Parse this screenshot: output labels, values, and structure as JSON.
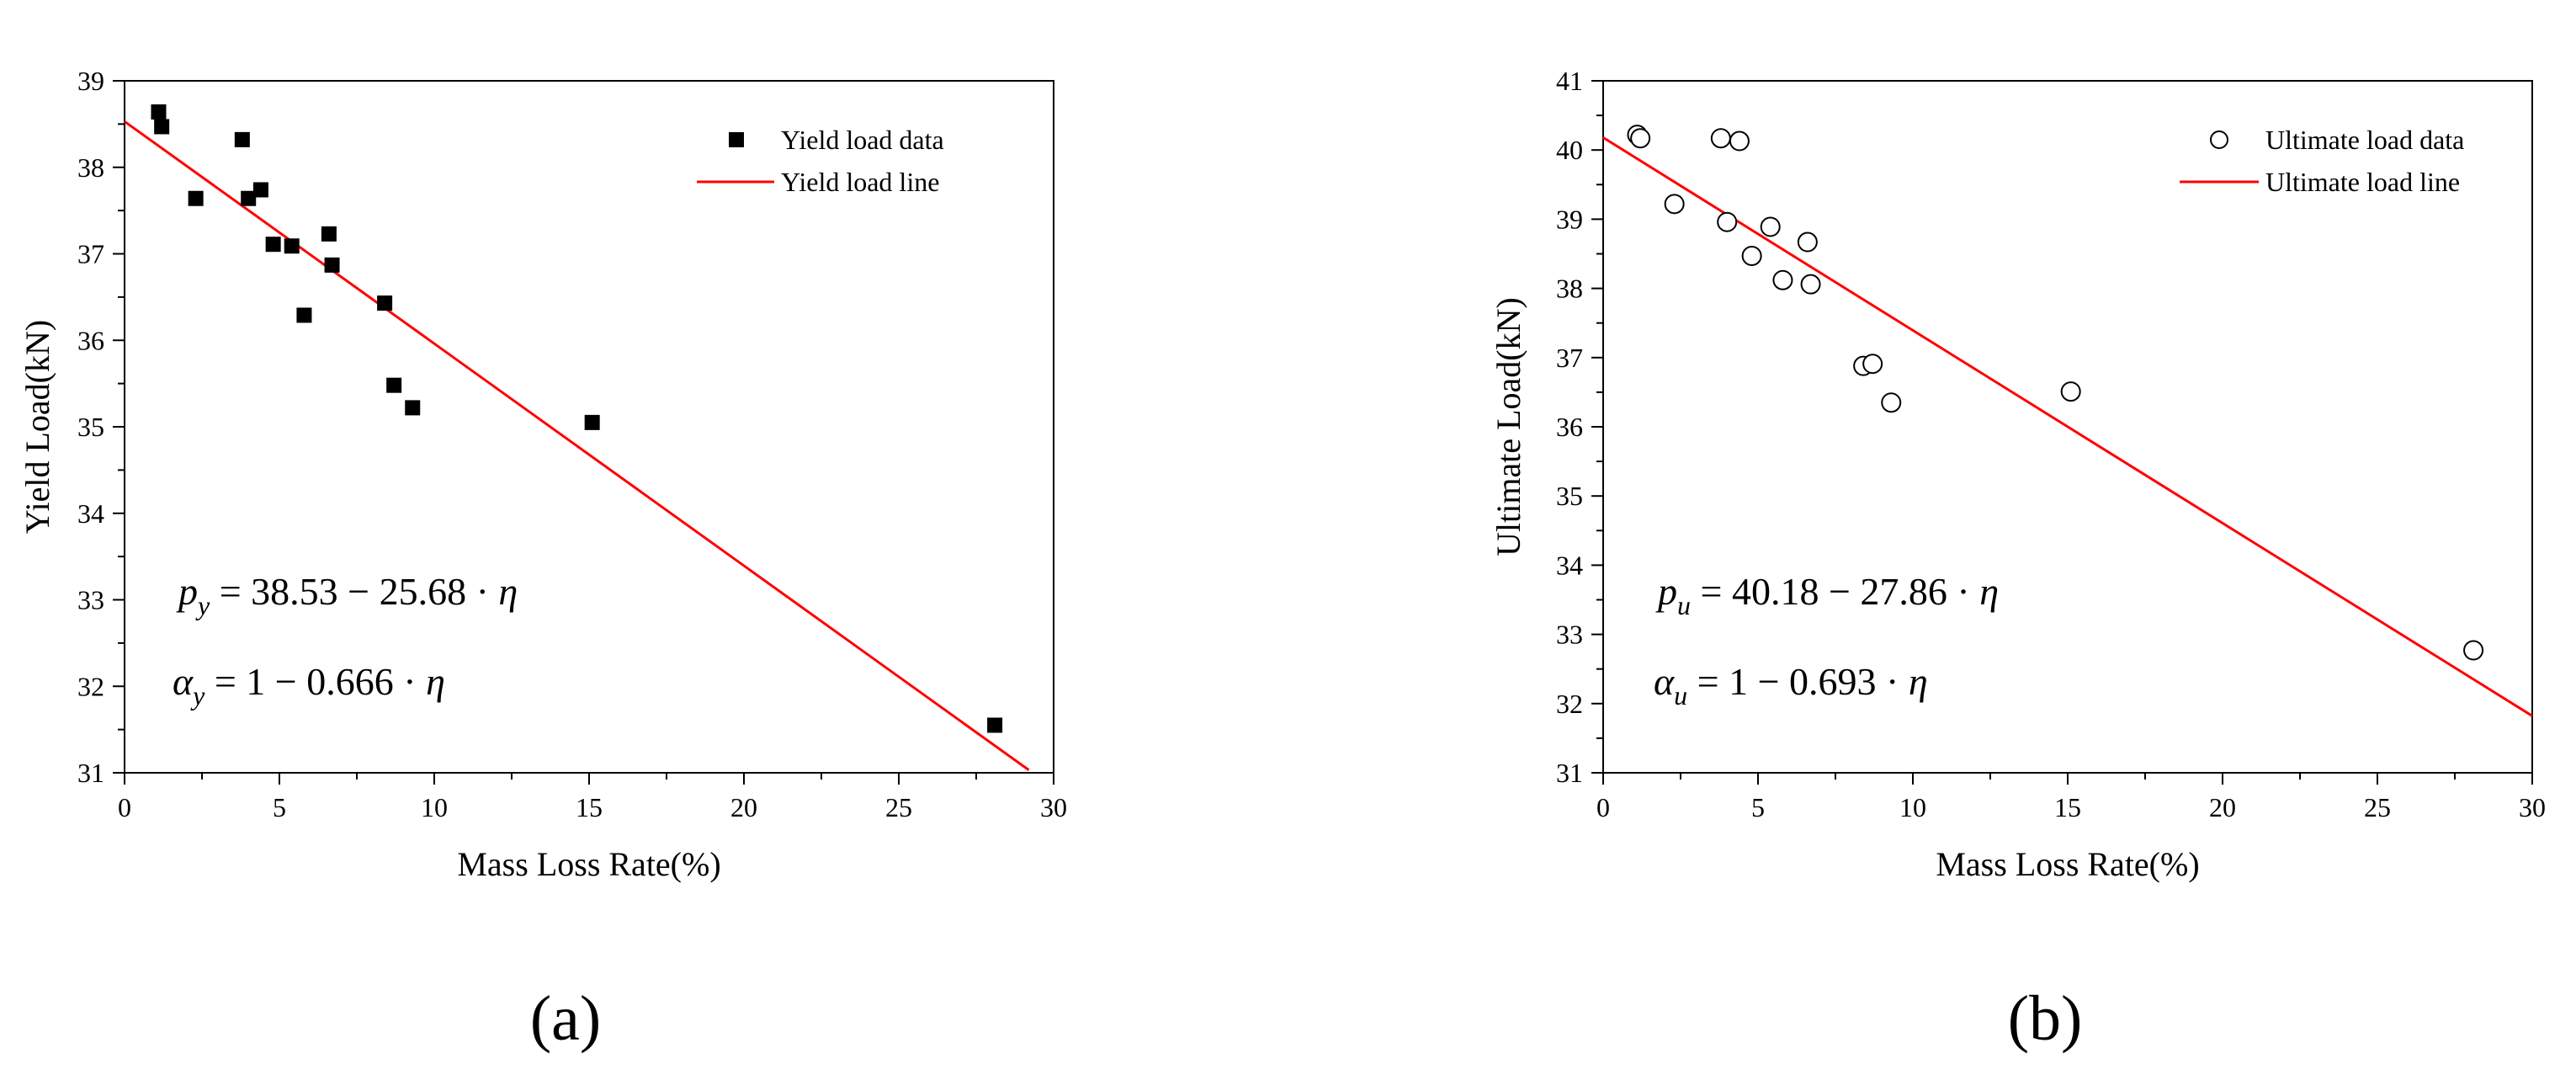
{
  "chart_data": [
    {
      "type": "scatter",
      "panel_label": "(a)",
      "xlabel": "Mass Loss Rate(%)",
      "ylabel": "Yield Load(kN)",
      "xlim": [
        0,
        30
      ],
      "ylim": [
        31,
        39
      ],
      "xticks": [
        "0",
        "5",
        "10",
        "15",
        "20",
        "25",
        "30"
      ],
      "yticks": [
        "31",
        "32",
        "33",
        "34",
        "35",
        "36",
        "37",
        "38",
        "39"
      ],
      "legend_position": "top-right",
      "marker": "filled-square",
      "series": [
        {
          "name": "Yield load data",
          "points": [
            [
              1.1,
              38.64
            ],
            [
              1.2,
              38.47
            ],
            [
              2.3,
              37.64
            ],
            [
              3.8,
              38.32
            ],
            [
              4.0,
              37.64
            ],
            [
              4.4,
              37.74
            ],
            [
              4.8,
              37.11
            ],
            [
              5.4,
              37.09
            ],
            [
              5.8,
              36.29
            ],
            [
              6.6,
              37.23
            ],
            [
              6.7,
              36.87
            ],
            [
              8.4,
              36.43
            ],
            [
              8.7,
              35.48
            ],
            [
              9.3,
              35.22
            ],
            [
              15.1,
              35.05
            ],
            [
              28.1,
              31.55
            ]
          ]
        }
      ],
      "fit_line": {
        "name": "Yield load line",
        "intercept": 38.53,
        "slope_per_percent": -0.2568,
        "x_end": 29.2
      },
      "equations": {
        "eq1": {
          "lhs": "p",
          "sub": "y",
          "rhs": " = 38.53 − 25.68 · ",
          "var": "η"
        },
        "eq2": {
          "lhs": "α",
          "sub": "y",
          "rhs": " = 1 − 0.666 · ",
          "var": "η"
        }
      },
      "colors": {
        "line": "#ff0000",
        "marker": "#000000"
      }
    },
    {
      "type": "scatter",
      "panel_label": "(b)",
      "xlabel": "Mass Loss Rate(%)",
      "ylabel": "Ultimate Load(kN)",
      "xlim": [
        0,
        30
      ],
      "ylim": [
        31,
        41
      ],
      "xticks": [
        "0",
        "5",
        "10",
        "15",
        "20",
        "25",
        "30"
      ],
      "yticks": [
        "31",
        "32",
        "33",
        "34",
        "35",
        "36",
        "37",
        "38",
        "39",
        "40",
        "41"
      ],
      "legend_position": "top-right",
      "marker": "open-circle",
      "series": [
        {
          "name": "Ultimate load data",
          "points": [
            [
              1.1,
              40.22
            ],
            [
              1.2,
              40.17
            ],
            [
              2.3,
              39.22
            ],
            [
              3.8,
              40.17
            ],
            [
              4.0,
              38.96
            ],
            [
              4.4,
              40.13
            ],
            [
              4.8,
              38.47
            ],
            [
              5.4,
              38.89
            ],
            [
              5.8,
              38.12
            ],
            [
              6.6,
              38.67
            ],
            [
              6.7,
              38.06
            ],
            [
              8.4,
              36.88
            ],
            [
              8.7,
              36.91
            ],
            [
              9.3,
              36.35
            ],
            [
              15.1,
              36.51
            ],
            [
              28.1,
              32.77
            ]
          ]
        }
      ],
      "fit_line": {
        "name": "Ultimate load line",
        "intercept": 40.18,
        "slope_per_percent": -0.2786,
        "x_end": 30
      },
      "equations": {
        "eq1": {
          "lhs": "p",
          "sub": "u",
          "rhs": " = 40.18 − 27.86 · ",
          "var": "η"
        },
        "eq2": {
          "lhs": "α",
          "sub": "u",
          "rhs": " = 1 − 0.693 · ",
          "var": "η"
        }
      },
      "colors": {
        "line": "#ff0000",
        "marker": "#000000"
      }
    }
  ]
}
